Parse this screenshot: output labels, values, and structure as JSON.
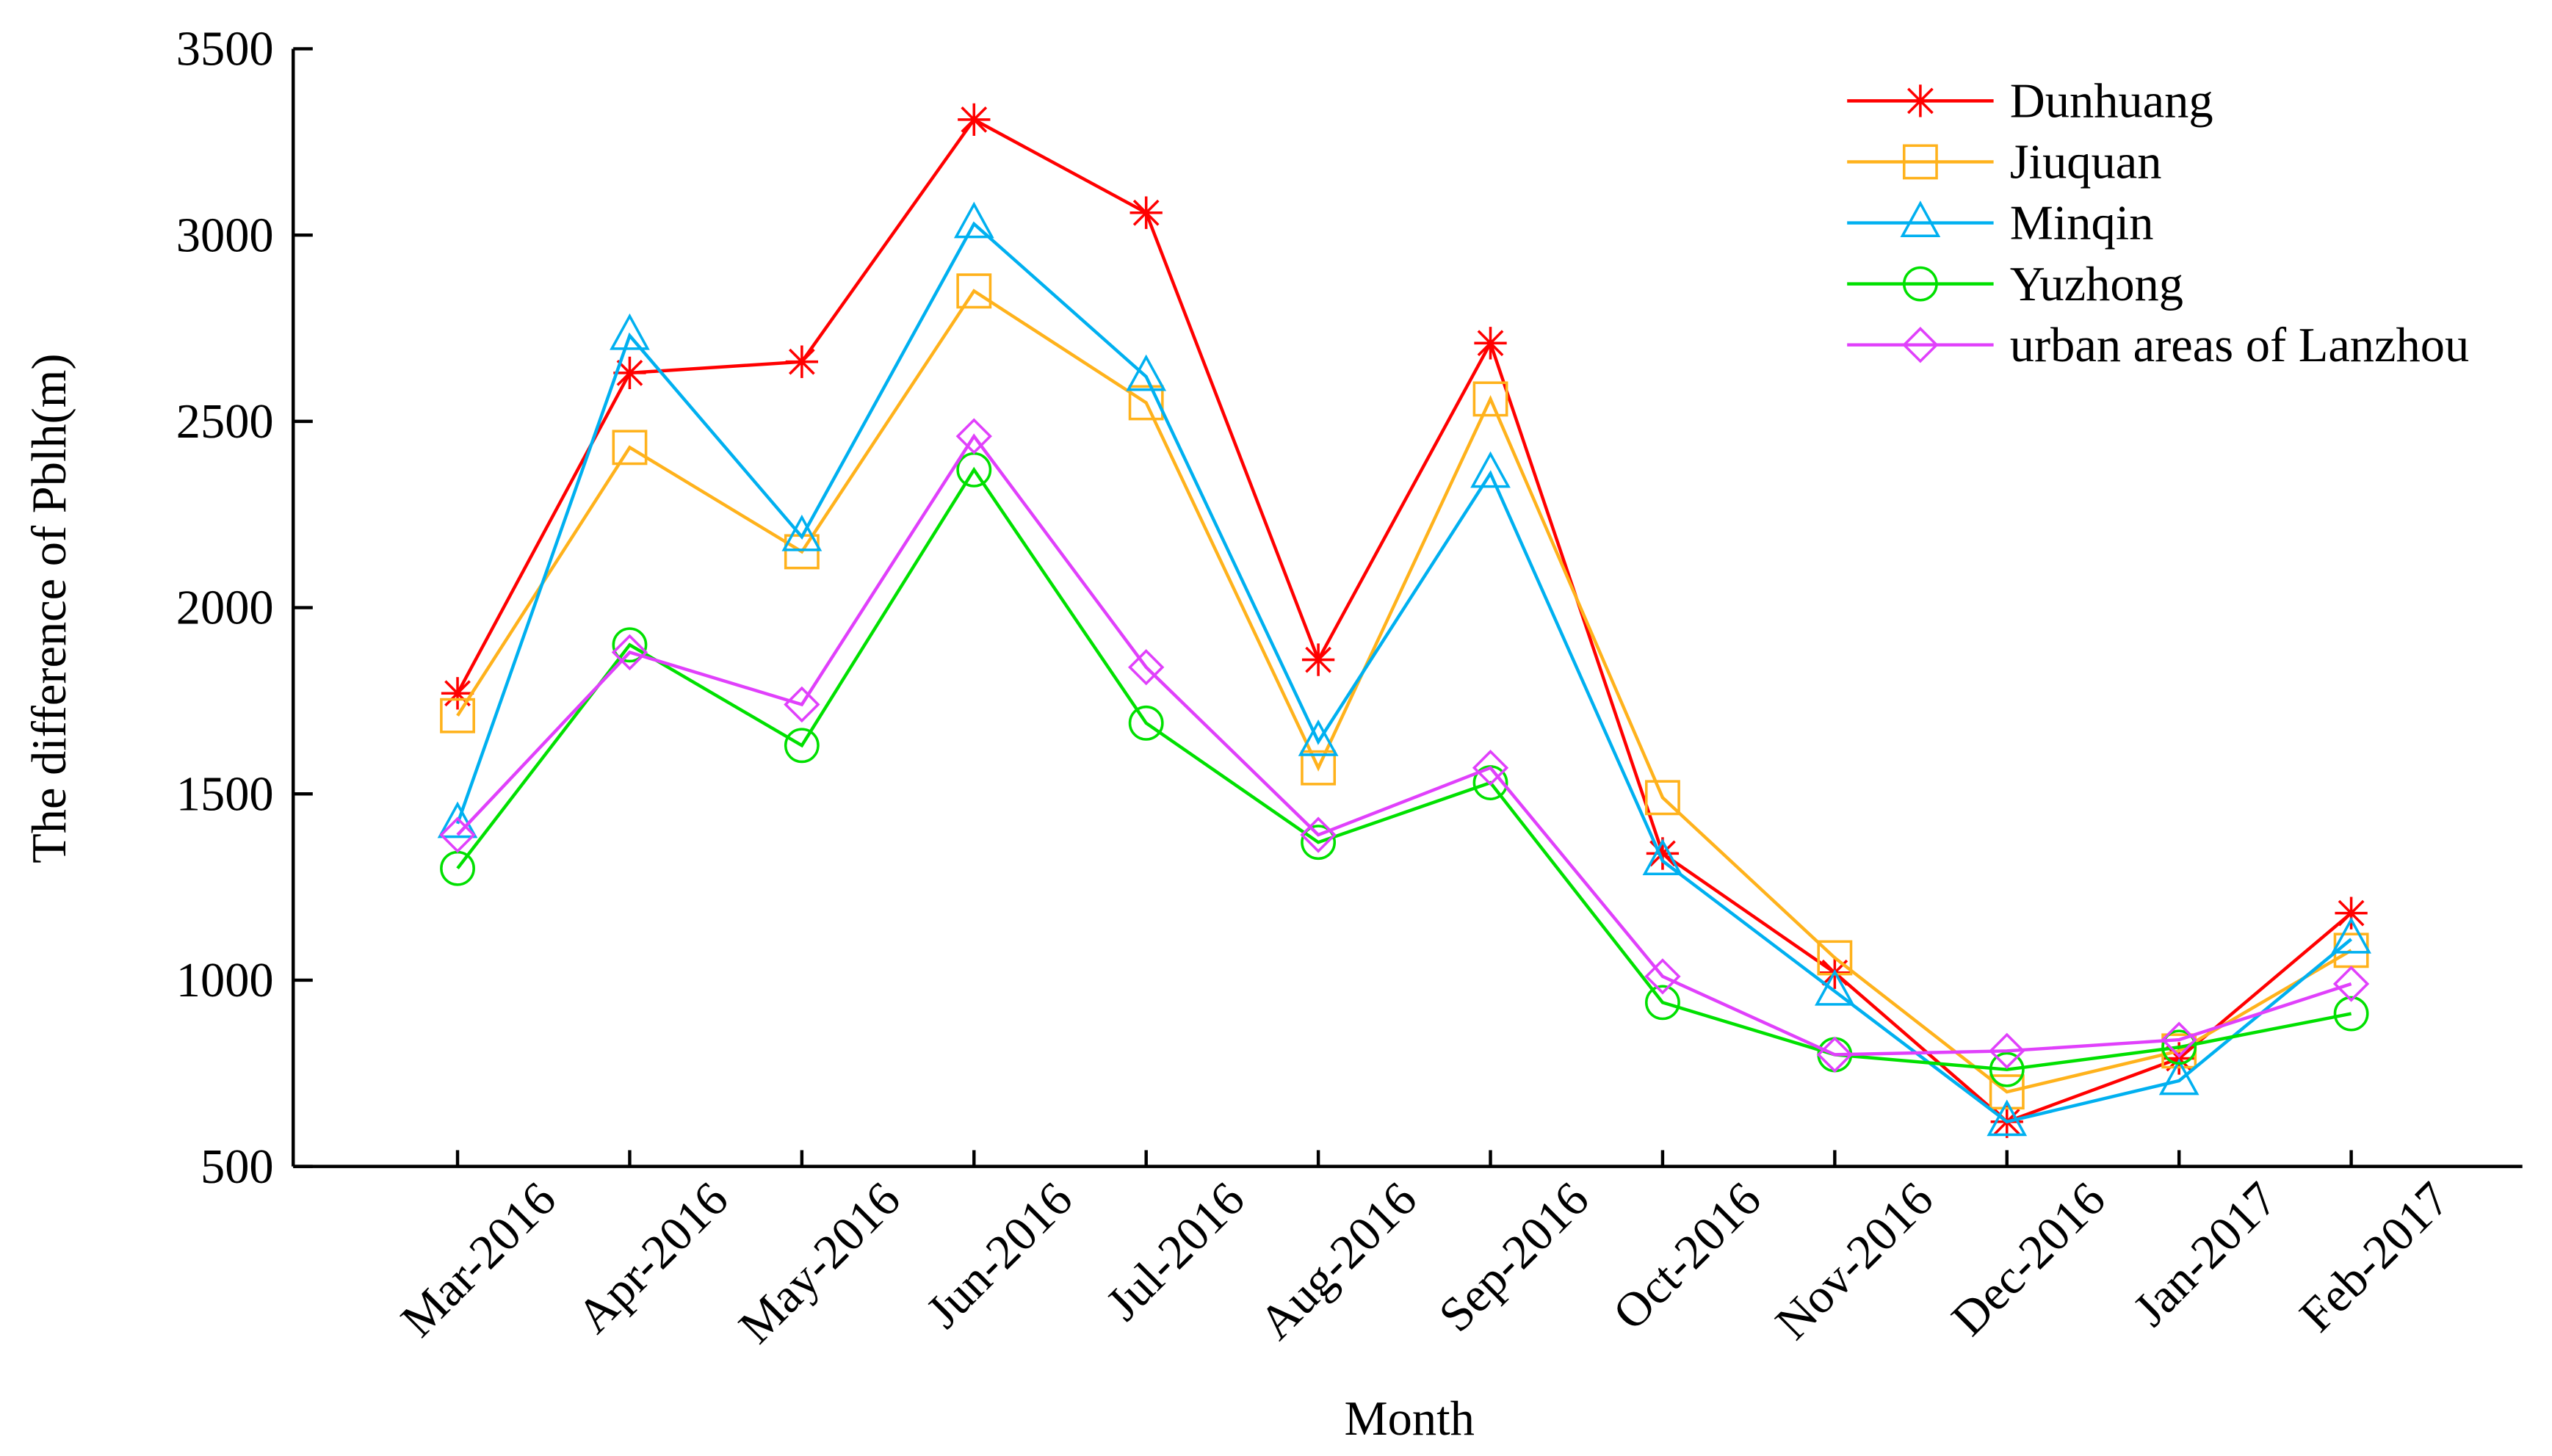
{
  "chart_data": {
    "type": "line",
    "xlabel": "Month",
    "ylabel": "The difference of Pblh(m)",
    "categories": [
      "Mar-2016",
      "Apr-2016",
      "May-2016",
      "Jun-2016",
      "Jul-2016",
      "Aug-2016",
      "Sep-2016",
      "Oct-2016",
      "Nov-2016",
      "Dec-2016",
      "Jan-2017",
      "Feb-2017"
    ],
    "series": [
      {
        "name": "Dunhuang",
        "color": "#ff0000",
        "marker": "star",
        "values": [
          1770,
          2630,
          2660,
          3310,
          3060,
          1860,
          2710,
          1340,
          1020,
          620,
          790,
          1180
        ]
      },
      {
        "name": "Jiuquan",
        "color": "#ffb21c",
        "marker": "square",
        "values": [
          1710,
          2430,
          2150,
          2850,
          2550,
          1570,
          2560,
          1490,
          1060,
          700,
          810,
          1080
        ]
      },
      {
        "name": "Minqin",
        "color": "#00b0f0",
        "marker": "triangle",
        "values": [
          1420,
          2730,
          2190,
          3030,
          2620,
          1640,
          2360,
          1320,
          970,
          620,
          730,
          1110
        ]
      },
      {
        "name": "Yuzhong",
        "color": "#00e000",
        "marker": "circle",
        "values": [
          1300,
          1900,
          1630,
          2370,
          1690,
          1370,
          1530,
          940,
          800,
          760,
          820,
          910
        ]
      },
      {
        "name": "urban areas of Lanzhou",
        "color": "#e040fb",
        "marker": "diamond",
        "values": [
          1390,
          1880,
          1740,
          2460,
          1840,
          1390,
          1570,
          1010,
          800,
          810,
          840,
          990
        ]
      }
    ],
    "ylim": [
      500,
      3500
    ],
    "yticks": [
      500,
      1000,
      1500,
      2000,
      2500,
      3000,
      3500
    ],
    "grid": false,
    "legend": "upper right"
  }
}
